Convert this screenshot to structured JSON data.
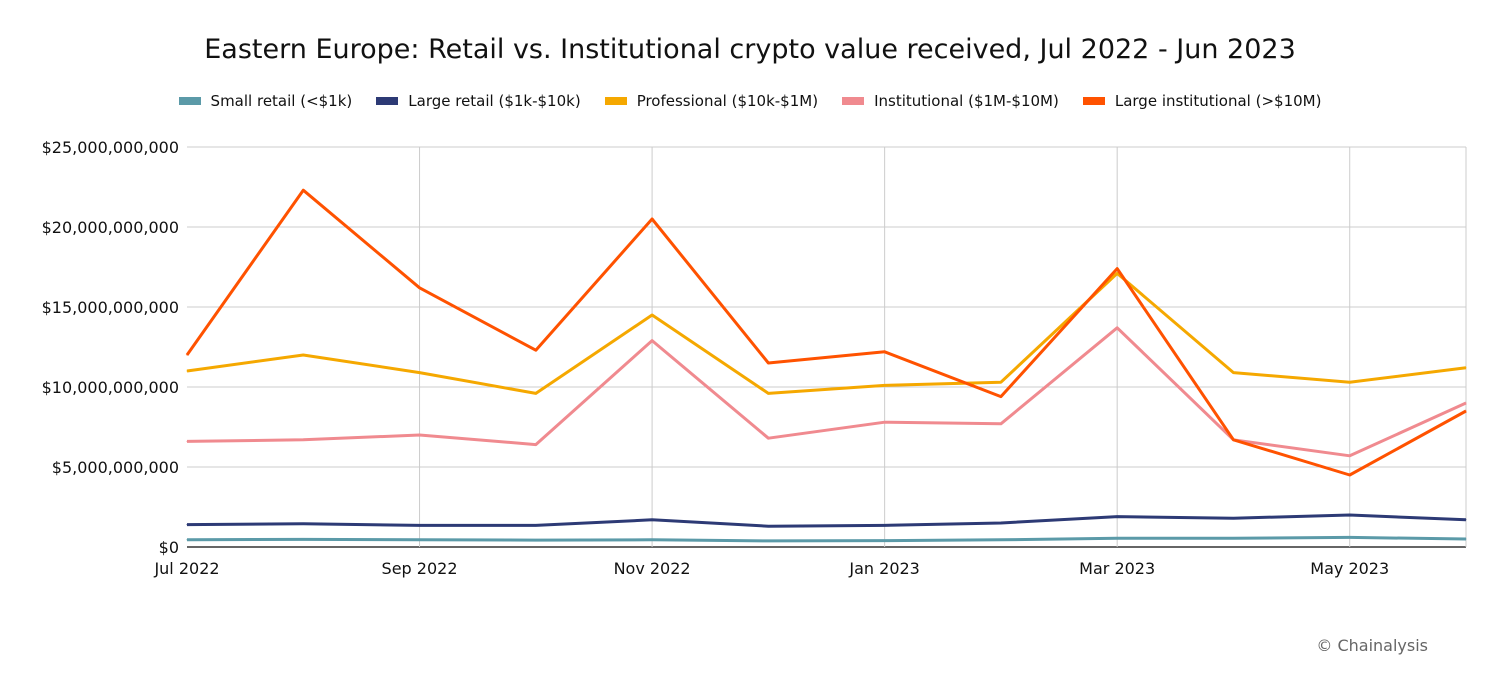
{
  "chart_data": {
    "type": "line",
    "title": "Eastern Europe: Retail vs. Institutional crypto value received, Jul 2022 - Jun 2023",
    "xlabel": "",
    "ylabel": "",
    "x": [
      "Jul 2022",
      "Aug 2022",
      "Sep 2022",
      "Oct 2022",
      "Nov 2022",
      "Dec 2022",
      "Jan 2023",
      "Feb 2023",
      "Mar 2023",
      "Apr 2023",
      "May 2023",
      "Jun 2023"
    ],
    "x_tick_labels": [
      "Jul 2022",
      "Sep 2022",
      "Nov 2022",
      "Jan 2023",
      "Mar 2023",
      "May 2023"
    ],
    "y_tick_labels": [
      "$0",
      "$5,000,000,000",
      "$10,000,000,000",
      "$15,000,000,000",
      "$20,000,000,000",
      "$25,000,000,000"
    ],
    "ylim": [
      0,
      25000000000
    ],
    "grid": true,
    "legend_position": "top",
    "series": [
      {
        "name": "Small retail (<$1k)",
        "color": "#5b9aa8",
        "values": [
          450000000,
          480000000,
          450000000,
          430000000,
          450000000,
          380000000,
          400000000,
          450000000,
          550000000,
          550000000,
          600000000,
          500000000
        ]
      },
      {
        "name": "Large retail ($1k-$10k)",
        "color": "#2d3a75",
        "values": [
          1400000000,
          1450000000,
          1350000000,
          1350000000,
          1700000000,
          1300000000,
          1350000000,
          1500000000,
          1900000000,
          1800000000,
          2000000000,
          1700000000
        ]
      },
      {
        "name": "Professional ($10k-$1M)",
        "color": "#f5a800",
        "values": [
          11000000000,
          12000000000,
          10900000000,
          9600000000,
          14500000000,
          9600000000,
          10100000000,
          10300000000,
          17100000000,
          10900000000,
          10300000000,
          11200000000
        ]
      },
      {
        "name": "Institutional ($1M-$10M)",
        "color": "#f08a8f",
        "values": [
          6600000000,
          6700000000,
          7000000000,
          6400000000,
          12900000000,
          6800000000,
          7800000000,
          7700000000,
          13700000000,
          6700000000,
          5700000000,
          9000000000
        ]
      },
      {
        "name": "Large institutional (>$10M)",
        "color": "#ff5200",
        "values": [
          12000000000,
          22300000000,
          16200000000,
          12300000000,
          20500000000,
          11500000000,
          12200000000,
          9400000000,
          17400000000,
          6700000000,
          4500000000,
          8500000000
        ]
      }
    ]
  },
  "credit": "© Chainalysis"
}
